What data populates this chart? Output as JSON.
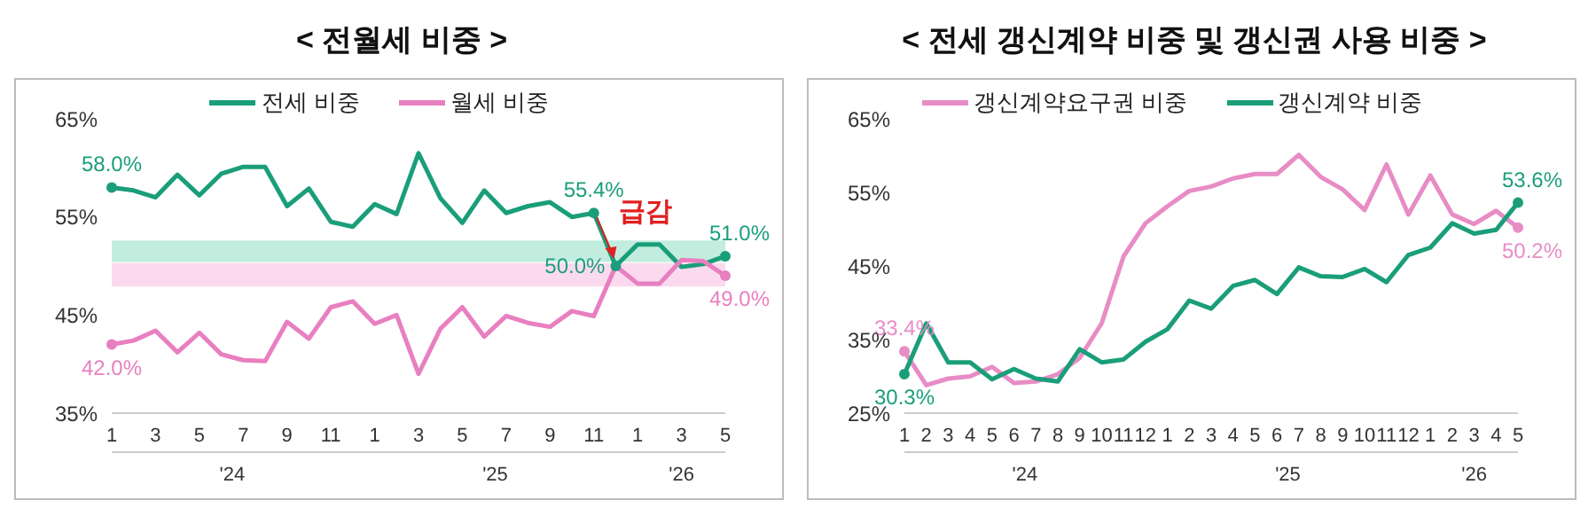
{
  "chart_data": [
    {
      "type": "line",
      "title": "< 전월세 비중 >",
      "legend": "top",
      "grid": false,
      "x": [
        "2024-01",
        "2024-02",
        "2024-03",
        "2024-04",
        "2024-05",
        "2024-06",
        "2024-07",
        "2024-08",
        "2024-09",
        "2024-10",
        "2024-11",
        "2024-12",
        "2025-01",
        "2025-02",
        "2025-03",
        "2025-04",
        "2025-05",
        "2025-06",
        "2025-07",
        "2025-08",
        "2025-09",
        "2025-10",
        "2025-11",
        "2025-12",
        "2026-01",
        "2026-02",
        "2026-03",
        "2026-04",
        "2026-05"
      ],
      "xlim": [
        "2024-01",
        "2026-05"
      ],
      "xticks": [
        {
          "value": "2024-01",
          "label": "1"
        },
        {
          "value": "2024-03",
          "label": "3"
        },
        {
          "value": "2024-05",
          "label": "5"
        },
        {
          "value": "2024-07",
          "label": "7"
        },
        {
          "value": "2024-09",
          "label": "9"
        },
        {
          "value": "2024-11",
          "label": "11"
        },
        {
          "value": "2025-01",
          "label": "1"
        },
        {
          "value": "2025-03",
          "label": "3"
        },
        {
          "value": "2025-05",
          "label": "5"
        },
        {
          "value": "2025-07",
          "label": "7"
        },
        {
          "value": "2025-09",
          "label": "9"
        },
        {
          "value": "2025-11",
          "label": "11"
        },
        {
          "value": "2026-01",
          "label": "1"
        },
        {
          "value": "2026-03",
          "label": "3"
        },
        {
          "value": "2026-05",
          "label": "5"
        }
      ],
      "ylim": [
        35,
        65
      ],
      "yticks": [
        {
          "value": 35,
          "label": "35%"
        },
        {
          "value": 45,
          "label": "45%"
        },
        {
          "value": 55,
          "label": "55%"
        },
        {
          "value": 65,
          "label": "65%"
        }
      ],
      "series": [
        {
          "name": "전세 비중",
          "color": "#1a9e7a",
          "values": [
            58.0,
            57.7,
            57.0,
            59.3,
            57.2,
            59.4,
            60.1,
            60.1,
            56.1,
            57.9,
            54.5,
            54.0,
            56.3,
            55.3,
            61.5,
            56.9,
            54.4,
            57.7,
            55.4,
            56.1,
            56.5,
            55.0,
            55.4,
            50.0,
            52.2,
            52.2,
            49.9,
            50.2,
            51.0
          ],
          "value_labels": [
            "58.0%",
            null,
            null,
            null,
            null,
            null,
            null,
            null,
            null,
            null,
            null,
            null,
            null,
            null,
            null,
            null,
            null,
            null,
            null,
            null,
            null,
            null,
            "55.4%",
            "50.0%",
            null,
            null,
            null,
            null,
            "51.0%"
          ]
        },
        {
          "name": "월세 비중",
          "color": "#e87fc0",
          "values": [
            42.0,
            42.4,
            43.4,
            41.2,
            43.2,
            41.0,
            40.4,
            40.3,
            44.3,
            42.6,
            45.8,
            46.4,
            44.1,
            45.0,
            39.0,
            43.6,
            45.8,
            42.8,
            44.9,
            44.2,
            43.8,
            45.4,
            44.9,
            50.0,
            48.2,
            48.2,
            50.6,
            50.5,
            49.0
          ],
          "value_labels": [
            "42.0%",
            null,
            null,
            null,
            null,
            null,
            null,
            null,
            null,
            null,
            null,
            null,
            null,
            null,
            null,
            null,
            null,
            null,
            null,
            null,
            null,
            null,
            null,
            null,
            null,
            null,
            null,
            null,
            "49.0%"
          ]
        }
      ],
      "bands": [
        {
          "axis": "y",
          "from": 50.4,
          "to": 52.6,
          "color": "#a8e6d0"
        },
        {
          "axis": "y",
          "from": 47.9,
          "to": 50.3,
          "color": "#f9cbe8"
        }
      ],
      "annotations": [
        "'24",
        "'25",
        "'26",
        {
          "text": "급감",
          "x": "2025-12",
          "y": 50.0
        }
      ]
    },
    {
      "type": "line",
      "title": "< 전세 갱신계약 비중 및 갱신권 사용 비중 >",
      "legend": "top",
      "grid": false,
      "x": [
        "2024-01",
        "2024-02",
        "2024-03",
        "2024-04",
        "2024-05",
        "2024-06",
        "2024-07",
        "2024-08",
        "2024-09",
        "2024-10",
        "2024-11",
        "2024-12",
        "2025-01",
        "2025-02",
        "2025-03",
        "2025-04",
        "2025-05",
        "2025-06",
        "2025-07",
        "2025-08",
        "2025-09",
        "2025-10",
        "2025-11",
        "2025-12",
        "2026-01",
        "2026-02",
        "2026-03",
        "2026-04",
        "2026-05"
      ],
      "xlim": [
        "2024-01",
        "2026-05"
      ],
      "xticks": [
        {
          "value": "2024-01",
          "label": "1"
        },
        {
          "value": "2024-02",
          "label": "2"
        },
        {
          "value": "2024-03",
          "label": "3"
        },
        {
          "value": "2024-04",
          "label": "4"
        },
        {
          "value": "2024-05",
          "label": "5"
        },
        {
          "value": "2024-06",
          "label": "6"
        },
        {
          "value": "2024-07",
          "label": "7"
        },
        {
          "value": "2024-08",
          "label": "8"
        },
        {
          "value": "2024-09",
          "label": "9"
        },
        {
          "value": "2024-10",
          "label": "10"
        },
        {
          "value": "2024-11",
          "label": "11"
        },
        {
          "value": "2024-12",
          "label": "12"
        },
        {
          "value": "2025-01",
          "label": "1"
        },
        {
          "value": "2025-02",
          "label": "2"
        },
        {
          "value": "2025-03",
          "label": "3"
        },
        {
          "value": "2025-04",
          "label": "4"
        },
        {
          "value": "2025-05",
          "label": "5"
        },
        {
          "value": "2025-06",
          "label": "6"
        },
        {
          "value": "2025-07",
          "label": "7"
        },
        {
          "value": "2025-08",
          "label": "8"
        },
        {
          "value": "2025-09",
          "label": "9"
        },
        {
          "value": "2025-10",
          "label": "10"
        },
        {
          "value": "2025-11",
          "label": "11"
        },
        {
          "value": "2025-12",
          "label": "12"
        },
        {
          "value": "2026-01",
          "label": "1"
        },
        {
          "value": "2026-02",
          "label": "2"
        },
        {
          "value": "2026-03",
          "label": "3"
        },
        {
          "value": "2026-04",
          "label": "4"
        },
        {
          "value": "2026-05",
          "label": "5"
        }
      ],
      "ylim": [
        25,
        65
      ],
      "yticks": [
        {
          "value": 25,
          "label": "25%"
        },
        {
          "value": 35,
          "label": "35%"
        },
        {
          "value": 45,
          "label": "45%"
        },
        {
          "value": 55,
          "label": "55%"
        },
        {
          "value": 65,
          "label": "65%"
        }
      ],
      "series": [
        {
          "name": "갱신계약요구권 비중",
          "color": "#e88cc6",
          "values": [
            33.4,
            28.8,
            29.7,
            30.0,
            31.3,
            29.1,
            29.3,
            30.3,
            32.5,
            37.2,
            46.3,
            50.8,
            53.1,
            55.2,
            55.8,
            56.9,
            57.5,
            57.5,
            60.1,
            57.1,
            55.4,
            52.6,
            58.8,
            52.0,
            57.3,
            52.0,
            50.7,
            52.5,
            50.2
          ],
          "value_labels": [
            "33.4%",
            null,
            null,
            null,
            null,
            null,
            null,
            null,
            null,
            null,
            null,
            null,
            null,
            null,
            null,
            null,
            null,
            null,
            null,
            null,
            null,
            null,
            null,
            null,
            null,
            null,
            null,
            null,
            "50.2%"
          ]
        },
        {
          "name": "갱신계약 비중",
          "color": "#1a9e7a",
          "values": [
            30.3,
            37.2,
            31.9,
            31.9,
            29.6,
            31.0,
            29.7,
            29.3,
            33.7,
            31.9,
            32.3,
            34.7,
            36.4,
            40.3,
            39.2,
            42.3,
            43.1,
            41.2,
            44.8,
            43.6,
            43.5,
            44.6,
            42.8,
            46.5,
            47.5,
            50.8,
            49.4,
            49.9,
            53.6
          ],
          "value_labels": [
            "30.3%",
            null,
            null,
            null,
            null,
            null,
            null,
            null,
            null,
            null,
            null,
            null,
            null,
            null,
            null,
            null,
            null,
            null,
            null,
            null,
            null,
            null,
            null,
            null,
            null,
            null,
            null,
            null,
            "53.6%"
          ]
        }
      ],
      "annotations": [
        "'24",
        "'25",
        "'26"
      ]
    }
  ]
}
